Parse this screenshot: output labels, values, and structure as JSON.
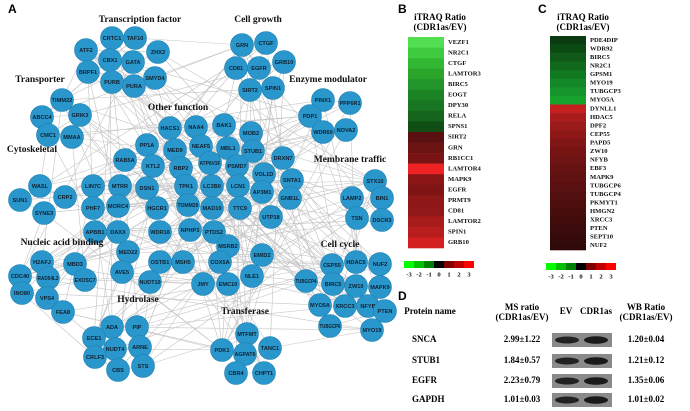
{
  "panel_a": {
    "label": "A",
    "groups": [
      "Transcription factor",
      "Cell growth",
      "Transporter",
      "Enzyme modulator",
      "Other function",
      "Cytoskeletal",
      "Membrane traffic",
      "Nucleic acid binding",
      "Cell cycle",
      "Hydrolase",
      "Transferase"
    ],
    "nodes": [
      "CRTC1",
      "TAF10",
      "ZHX2",
      "ATF2",
      "CBX1",
      "GATA",
      "SMYD4",
      "BRPF1",
      "PURB",
      "PURA",
      "GRN",
      "CTGF",
      "CD81",
      "EGFR",
      "GRB10",
      "SIRT2",
      "SPIN1",
      "TIMM22",
      "ABCC4",
      "GRIK3",
      "CMC1",
      "MMAA",
      "PINX1",
      "PPP6R1",
      "PDP1",
      "WDR60",
      "NOVA2",
      "WASL",
      "CRP2",
      "SUN1",
      "SYNE3",
      "STX10",
      "BIN1",
      "LAMP2",
      "TSN",
      "DSCR3",
      "H2AFJ",
      "MBD3",
      "CDC40",
      "RAD54L2",
      "EXOSC7",
      "INO80",
      "VPS4",
      "FEA8",
      "CEP55",
      "HDAC5",
      "NUF2",
      "BIRC5",
      "ZW10",
      "MAPK9",
      "TUBGCP4",
      "MYO5A",
      "XRCC3",
      "NFYB",
      "PTEN",
      "TUBGCP6",
      "MYO19",
      "ADA",
      "PIP",
      "ECE1",
      "NUDT4",
      "ARNE",
      "CRLF3",
      "CBS",
      "STS",
      "MTFMT",
      "PDK1",
      "AGPAT6",
      "TANC1",
      "CBR4",
      "CHPT1",
      "HACS1",
      "NAA4",
      "BAK1",
      "MOB2",
      "PP1A",
      "MED9",
      "NEAF5",
      "MBL1",
      "STUB1",
      "DRXN7",
      "RAB5A",
      "KTL2",
      "RBP2",
      "ATP6V1F",
      "PSMD7",
      "VOL1D",
      "SNTA1",
      "LIN7C",
      "MTRR",
      "DSN1",
      "TPK1",
      "LC3B0",
      "LCN1",
      "AP3M1",
      "GNB1L",
      "PHF7",
      "MORC4",
      "HGCR1",
      "TOMM20",
      "MAD10",
      "TTC9",
      "UTP18",
      "APBB1",
      "DAXX",
      "WDR18",
      "NPHP3",
      "PTDS2",
      "MSRB2",
      "EMID2",
      "MED22",
      "AVE5",
      "OSTB1",
      "MSH5",
      "COX5A",
      "NLE1",
      "NUDT10",
      "JMY",
      "EMC10"
    ]
  },
  "panel_b": {
    "label": "B",
    "title": "iTRAQ Ratio",
    "subtitle": "(CDR1as/EV)",
    "genes": [
      "VEZF1",
      "NR2C1",
      "CTGF",
      "LAMTOR3",
      "BIRC5",
      "EOGT",
      "DPY30",
      "RELA",
      "SPNS1",
      "SIRT2",
      "GRN",
      "RB1CC1",
      "LAMTOR4",
      "MAPK9",
      "EGFR",
      "PRMT9",
      "CD81",
      "LAMTOR2",
      "SPIN1",
      "GRB10"
    ],
    "colors": [
      "#52e052",
      "#3ecc3e",
      "#33b833",
      "#2aa52a",
      "#22962a",
      "#1c8424",
      "#187522",
      "#15661c",
      "#0f4e14",
      "#5a1010",
      "#6b1212",
      "#7a1414",
      "#ee2222",
      "#8a1616",
      "#7e1414",
      "#8e1818",
      "#901818",
      "#a81c1c",
      "#b81e1e",
      "#d42020"
    ],
    "scale": [
      "-3",
      "-2",
      "-1",
      "0",
      "1",
      "2",
      "3"
    ],
    "scale_colors": [
      "#00ff00",
      "#00c000",
      "#008000",
      "#000000",
      "#800000",
      "#c00000",
      "#ff0000"
    ]
  },
  "panel_c": {
    "label": "C",
    "title": "iTRAQ Ratio",
    "subtitle": "(CDR1as/EV)",
    "genes": [
      "PDE4DIP",
      "WDR92",
      "BIRC5",
      "NR2C1",
      "GPSM1",
      "MYO19",
      "TUBGCP3",
      "MYO5A",
      "DYNLL1",
      "HDAC5",
      "DPF2",
      "CEP55",
      "PAPD5",
      "ZW10",
      "NFYB",
      "EBF3",
      "MAPK9",
      "TUBGCP6",
      "TUBGCP4",
      "PKMYT1",
      "HMGN2",
      "XRCC3",
      "PTEN",
      "SEPT10",
      "NUF2"
    ],
    "colors": [
      "#0a3a10",
      "#0c4a14",
      "#0f5a18",
      "#116a1c",
      "#127820",
      "#148826",
      "#15952a",
      "#18a22e",
      "#c42020",
      "#a81c1c",
      "#9a1a1a",
      "#8e1818",
      "#801616",
      "#761414",
      "#6e1414",
      "#661212",
      "#601212",
      "#5a1010",
      "#541010",
      "#4e0e0e",
      "#480e0e",
      "#420c0c",
      "#3c0c0c",
      "#360a0a",
      "#300a0a"
    ],
    "scale": [
      "-3",
      "-2",
      "-1",
      "0",
      "1",
      "2",
      "3"
    ],
    "scale_colors": [
      "#00ff00",
      "#00c000",
      "#008000",
      "#000000",
      "#800000",
      "#c00000",
      "#ff0000"
    ]
  },
  "panel_d": {
    "label": "D",
    "headers": [
      "Protein name",
      "MS ratio",
      "(CDR1as/EV)",
      "EV",
      "CDR1as",
      "WB Ratio",
      "(CDR1as/EV)"
    ],
    "rows": [
      [
        "SNCA",
        "2.99±1.22",
        "1.20±0.04"
      ],
      [
        "STUB1",
        "1.84±0.57",
        "1.21±0.12"
      ],
      [
        "EGFR",
        "2.23±0.79",
        "1.35±0.06"
      ],
      [
        "GAPDH",
        "1.01±0.03",
        "1.01±0.02"
      ]
    ]
  }
}
